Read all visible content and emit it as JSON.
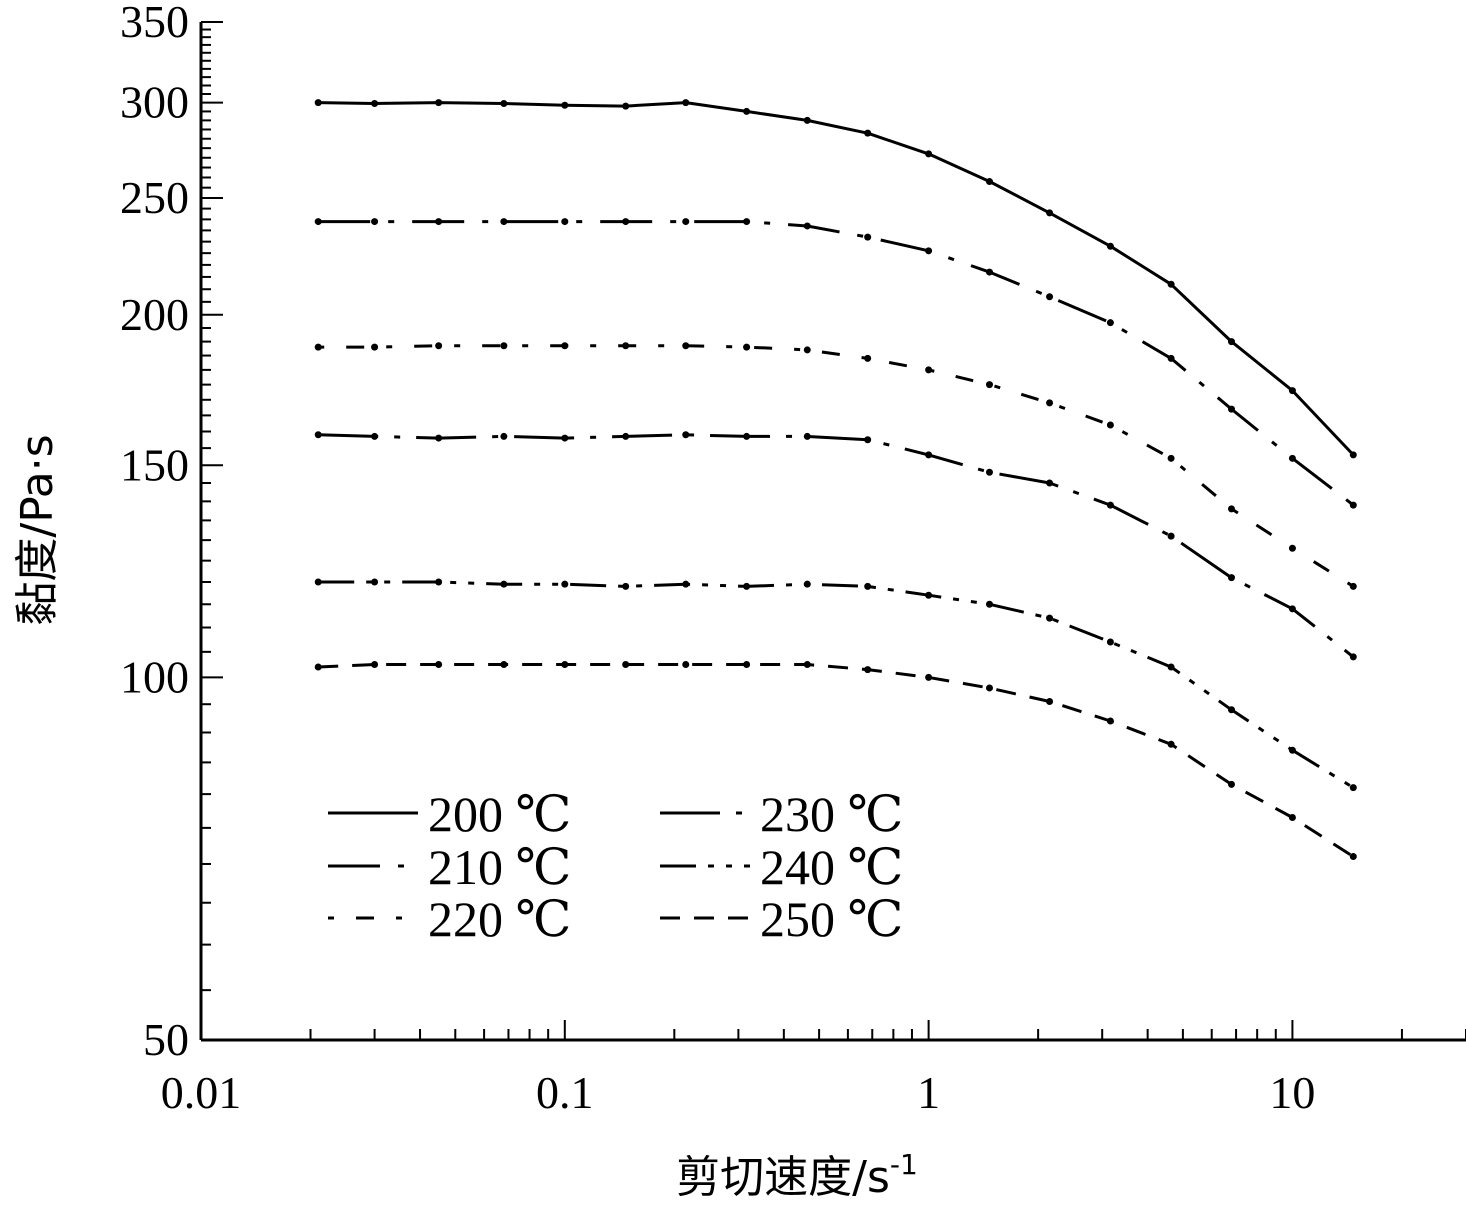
{
  "chart_data": {
    "type": "line",
    "title": "",
    "xlabel": "剪切速度/s",
    "xlabel_sup": "-1",
    "ylabel": "黏度/Pa·s",
    "x_scale": "log",
    "y_scale": "log",
    "xlim": [
      0.01,
      30
    ],
    "ylim": [
      50,
      350
    ],
    "x_ticks": [
      0.01,
      0.1,
      1,
      10
    ],
    "x_tick_labels": [
      "0.01",
      "0.1",
      "1",
      "10"
    ],
    "y_ticks": [
      50,
      100,
      150,
      200,
      250,
      300,
      350
    ],
    "y_tick_labels": [
      "50",
      "100",
      "150",
      "200",
      "250",
      "300",
      "350"
    ],
    "grid": false,
    "legend_position": "bottom-left",
    "x": [
      0.021,
      0.03,
      0.045,
      0.068,
      0.1,
      0.147,
      0.215,
      0.316,
      0.464,
      0.68,
      1.0,
      1.47,
      2.15,
      3.16,
      4.64,
      6.8,
      10.0,
      14.7
    ],
    "series": [
      {
        "name": "200 ℃",
        "style": "solid",
        "values": [
          300,
          299.5,
          300,
          299.5,
          298.5,
          298,
          300,
          295,
          290,
          283,
          272,
          258,
          243,
          228,
          212,
          190,
          173,
          153
        ]
      },
      {
        "name": "210 ℃",
        "style": "dash-dot",
        "values": [
          239,
          239,
          239,
          239,
          239,
          239,
          239,
          239,
          237,
          232,
          226,
          217,
          207,
          197,
          184,
          167,
          152,
          139
        ]
      },
      {
        "name": "220 ℃",
        "style": "dot-dash",
        "values": [
          188,
          188,
          188.5,
          188.5,
          188.5,
          188.5,
          188.5,
          188,
          187,
          184,
          180,
          175,
          169,
          162,
          152,
          138,
          128,
          119
        ]
      },
      {
        "name": "230 ℃",
        "style": "long-dash-dot",
        "values": [
          159,
          158.5,
          158,
          158.5,
          158,
          158.5,
          159,
          158.5,
          158.5,
          157.5,
          153,
          148,
          145,
          139,
          131,
          121,
          114,
          104
        ]
      },
      {
        "name": "240 ℃",
        "style": "dash-dot-dot",
        "values": [
          120,
          120,
          120,
          119.5,
          119.5,
          119,
          119.5,
          119,
          119.5,
          119,
          117,
          115,
          112,
          107,
          102,
          94,
          87,
          81
        ]
      },
      {
        "name": "250 ℃",
        "style": "dashed",
        "values": [
          102,
          102.5,
          102.5,
          102.5,
          102.5,
          102.5,
          102.5,
          102.5,
          102.5,
          101.5,
          100,
          98,
          95.5,
          92,
          88,
          81.5,
          76.5,
          71
        ]
      }
    ]
  }
}
